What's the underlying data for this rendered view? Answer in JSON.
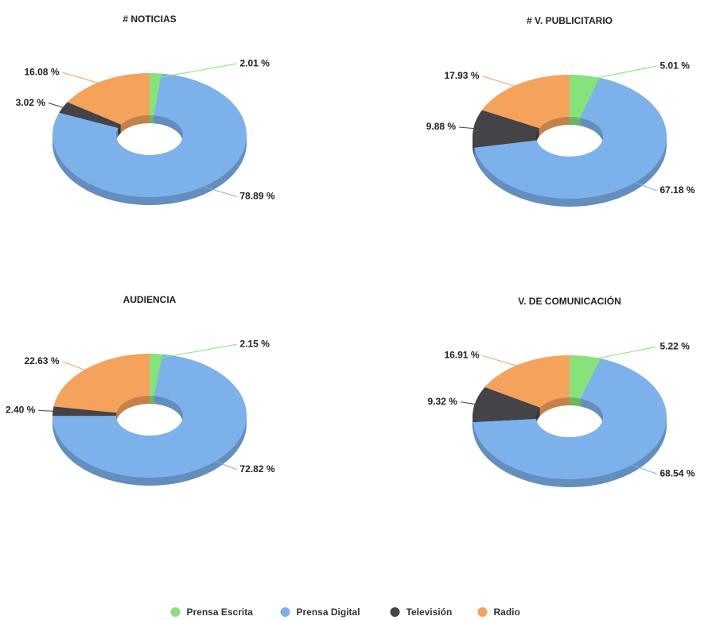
{
  "chart_data": [
    {
      "type": "donut3d",
      "title": "# NOTICIAS",
      "categories": [
        "Prensa Escrita",
        "Prensa Digital",
        "Televisión",
        "Radio"
      ],
      "colors": [
        "#86e37a",
        "#7cb1ec",
        "#434348",
        "#f5a25d"
      ],
      "values": [
        2.01,
        78.89,
        3.02,
        16.08
      ],
      "value_labels": [
        "2.01 %",
        "78.89 %",
        "3.02 %",
        "16.08 %"
      ]
    },
    {
      "type": "donut3d",
      "title": "# V. PUBLICITARIO",
      "categories": [
        "Prensa Escrita",
        "Prensa Digital",
        "Televisión",
        "Radio"
      ],
      "colors": [
        "#86e37a",
        "#7cb1ec",
        "#434348",
        "#f5a25d"
      ],
      "values": [
        5.01,
        67.18,
        9.88,
        17.93
      ],
      "value_labels": [
        "5.01 %",
        "67.18 %",
        "9.88 %",
        "17.93 %"
      ]
    },
    {
      "type": "donut3d",
      "title": "AUDIENCIA",
      "categories": [
        "Prensa Escrita",
        "Prensa Digital",
        "Televisión",
        "Radio"
      ],
      "colors": [
        "#86e37a",
        "#7cb1ec",
        "#434348",
        "#f5a25d"
      ],
      "values": [
        2.15,
        72.82,
        2.4,
        22.63
      ],
      "value_labels": [
        "2.15 %",
        "72.82 %",
        "2.40 %",
        "22.63 %"
      ]
    },
    {
      "type": "donut3d",
      "title": "V. DE COMUNICACIÓN",
      "categories": [
        "Prensa Escrita",
        "Prensa Digital",
        "Televisión",
        "Radio"
      ],
      "colors": [
        "#86e37a",
        "#7cb1ec",
        "#434348",
        "#f5a25d"
      ],
      "values": [
        5.22,
        68.54,
        9.32,
        16.91
      ],
      "value_labels": [
        "5.22 %",
        "68.54 %",
        "9.32 %",
        "16.91 %"
      ]
    }
  ]
}
